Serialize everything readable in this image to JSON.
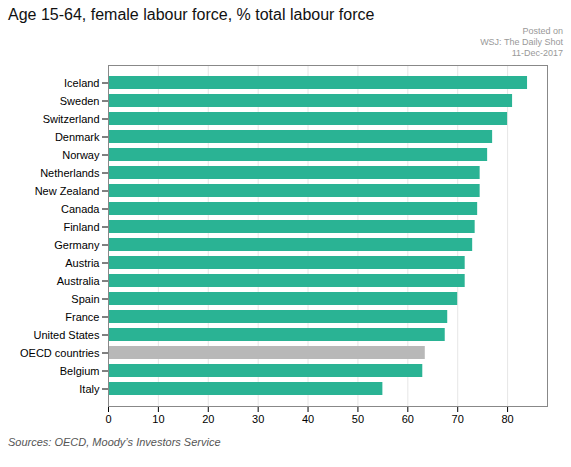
{
  "chart_data": {
    "type": "bar",
    "orientation": "horizontal",
    "title": "Age 15-64, female labour force, % total labour force",
    "annotations": [
      "Posted on",
      "WSJ: The Daily Shot",
      "11-Dec-2017",
      "Sources: OECD, Moody’s Investors Service"
    ],
    "categories": [
      "Iceland",
      "Sweden",
      "Switzerland",
      "Denmark",
      "Norway",
      "Netherlands",
      "New Zealand",
      "Canada",
      "Finland",
      "Germany",
      "Austria",
      "Australia",
      "Spain",
      "France",
      "United States",
      "OECD countries",
      "Belgium",
      "Italy"
    ],
    "values": [
      84,
      81,
      80,
      77,
      76,
      74.5,
      74.5,
      74,
      73.5,
      73,
      71.5,
      71.5,
      70,
      68,
      67.5,
      63.5,
      63,
      55
    ],
    "colors": [
      "#2ab394",
      "#2ab394",
      "#2ab394",
      "#2ab394",
      "#2ab394",
      "#2ab394",
      "#2ab394",
      "#2ab394",
      "#2ab394",
      "#2ab394",
      "#2ab394",
      "#2ab394",
      "#2ab394",
      "#2ab394",
      "#2ab394",
      "#b8b8b8",
      "#2ab394",
      "#2ab394"
    ],
    "xlim": [
      0,
      88
    ],
    "xticks": [
      0,
      10,
      20,
      30,
      40,
      50,
      60,
      70,
      80
    ],
    "grid": true
  }
}
